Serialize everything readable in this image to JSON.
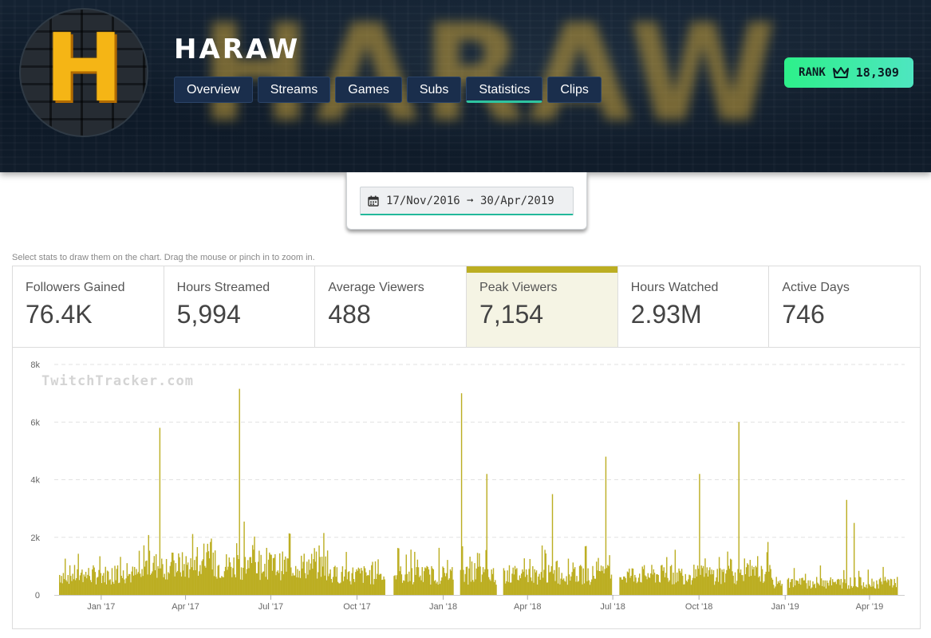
{
  "header": {
    "channel_name": "HARAW",
    "banner_text": "HARAW",
    "avatar_letter": "H",
    "nav": [
      "Overview",
      "Streams",
      "Games",
      "Subs",
      "Statistics",
      "Clips"
    ],
    "active_tab": "Statistics",
    "rank_label": "RANK",
    "rank_value": "18,309"
  },
  "date_range": {
    "label": "17/Nov/2016 ➞ 30/Apr/2019"
  },
  "hint": "Select stats to draw them on the chart. Drag the mouse or pinch in to zoom in.",
  "stats": [
    {
      "label": "Followers Gained",
      "value": "76.4K"
    },
    {
      "label": "Hours Streamed",
      "value": "5,994"
    },
    {
      "label": "Average Viewers",
      "value": "488"
    },
    {
      "label": "Peak Viewers",
      "value": "7,154"
    },
    {
      "label": "Hours Watched",
      "value": "2.93M"
    },
    {
      "label": "Active Days",
      "value": "746"
    }
  ],
  "active_stat": "Peak Viewers",
  "watermark": "TwitchTracker.com",
  "colors": {
    "bar": "#bcae22",
    "accent": "#2ec4a0",
    "rank": "#2df08a"
  },
  "chart_data": {
    "type": "bar",
    "series_name": "Peak Viewers",
    "y_ticks": [
      "0",
      "2k",
      "4k",
      "6k",
      "8k"
    ],
    "ylim": [
      0,
      8000
    ],
    "x_ticks": [
      "Jan '17",
      "Apr '17",
      "Jul '17",
      "Oct '17",
      "Jan '18",
      "Apr '18",
      "Jul '18",
      "Oct '18",
      "Jan '19",
      "Apr '19"
    ],
    "x_range": [
      "2016-11-17",
      "2019-04-30"
    ],
    "grid": true,
    "peaks": [
      {
        "date": "2017-03-04",
        "value": 5800
      },
      {
        "date": "2017-05-28",
        "value": 7154
      },
      {
        "date": "2018-01-20",
        "value": 7000
      },
      {
        "date": "2018-02-16",
        "value": 4200
      },
      {
        "date": "2018-04-27",
        "value": 3500
      },
      {
        "date": "2018-06-23",
        "value": 4800
      },
      {
        "date": "2018-10-01",
        "value": 4200
      },
      {
        "date": "2018-11-12",
        "value": 6000
      },
      {
        "date": "2019-03-07",
        "value": 3300
      },
      {
        "date": "2019-03-15",
        "value": 2500
      }
    ]
  }
}
